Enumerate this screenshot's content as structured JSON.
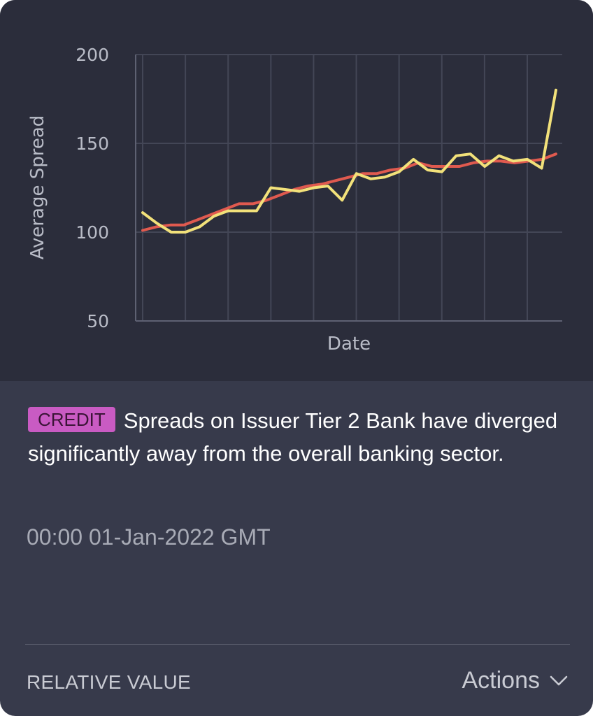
{
  "chart_data": {
    "type": "line",
    "title": "",
    "xlabel": "Date",
    "ylabel": "Average Spread",
    "ylim": [
      50,
      200
    ],
    "yticks": [
      "200",
      "150",
      "100",
      "50"
    ],
    "x_gridlines": 10,
    "grid": true,
    "series": [
      {
        "color": "#e05a4f",
        "values": [
          101,
          103,
          104,
          104,
          107,
          110,
          113,
          116,
          116,
          118,
          121,
          124,
          126,
          127,
          129,
          131,
          133,
          133,
          135,
          136,
          139,
          137,
          137,
          137,
          139,
          140,
          140,
          139,
          140,
          141,
          144
        ]
      },
      {
        "color": "#f2e17a",
        "values": [
          111,
          105,
          100,
          100,
          103,
          109,
          112,
          112,
          112,
          125,
          124,
          123,
          125,
          126,
          118,
          133,
          130,
          131,
          134,
          141,
          135,
          134,
          143,
          144,
          137,
          143,
          140,
          141,
          136,
          180
        ]
      }
    ]
  },
  "card": {
    "badge": "CREDIT",
    "message": "Spreads on Issuer Tier 2 Bank have diverged significantly away from the overall banking sector.",
    "timestamp": "00:00 01-Jan-2022 GMT",
    "category": "RELATIVE VALUE",
    "actions_label": "Actions",
    "actions_icon": "chevron-down-icon"
  }
}
